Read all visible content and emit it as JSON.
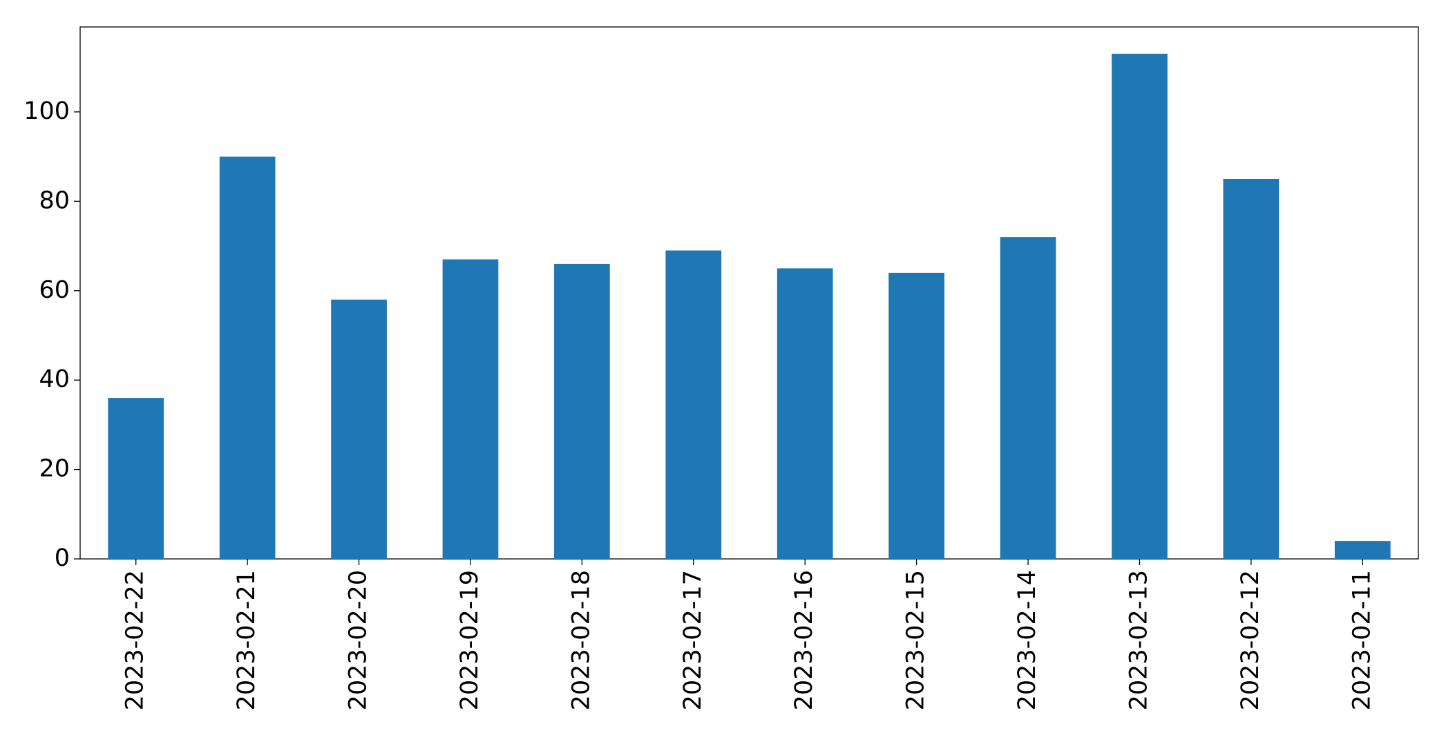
{
  "chart_data": {
    "type": "bar",
    "categories": [
      "2023-02-22",
      "2023-02-21",
      "2023-02-20",
      "2023-02-19",
      "2023-02-18",
      "2023-02-17",
      "2023-02-16",
      "2023-02-15",
      "2023-02-14",
      "2023-02-13",
      "2023-02-12",
      "2023-02-11"
    ],
    "values": [
      36,
      90,
      58,
      67,
      66,
      69,
      65,
      64,
      72,
      113,
      85,
      4
    ],
    "color": "#1f77b4",
    "ylim": [
      0,
      119
    ],
    "yticks": [
      0,
      20,
      40,
      60,
      80,
      100
    ],
    "grid": false
  }
}
